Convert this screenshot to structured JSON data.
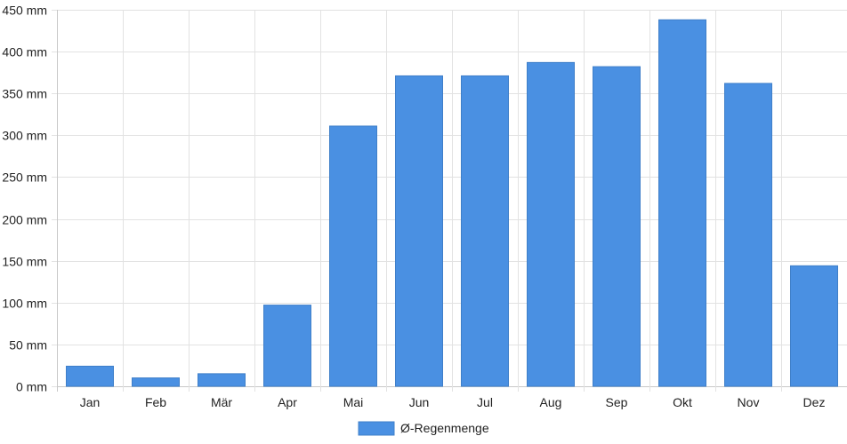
{
  "chart_data": {
    "type": "bar",
    "title": "",
    "xlabel": "",
    "ylabel": "",
    "categories": [
      "Jan",
      "Feb",
      "Mär",
      "Apr",
      "Mai",
      "Jun",
      "Jul",
      "Aug",
      "Sep",
      "Okt",
      "Nov",
      "Dez"
    ],
    "series": [
      {
        "name": "Ø-Regenmenge",
        "values": [
          24,
          10,
          15,
          97,
          311,
          371,
          371,
          387,
          382,
          438,
          362,
          144
        ]
      }
    ],
    "y_unit": "mm",
    "ylim": [
      0,
      450
    ],
    "y_ticks": [
      0,
      50,
      100,
      150,
      200,
      250,
      300,
      350,
      400,
      450
    ],
    "y_tick_labels": [
      "0 mm",
      "50 mm",
      "100 mm",
      "150 mm",
      "200 mm",
      "250 mm",
      "300 mm",
      "350 mm",
      "400 mm",
      "450 mm"
    ],
    "grid": true,
    "legend": "bottom",
    "colors": {
      "bar_fill": "#4a90e2",
      "bar_stroke": "#3f7fc9",
      "grid": "#e2e2e2",
      "axis": "#c8c8c8",
      "text": "#222222"
    }
  }
}
